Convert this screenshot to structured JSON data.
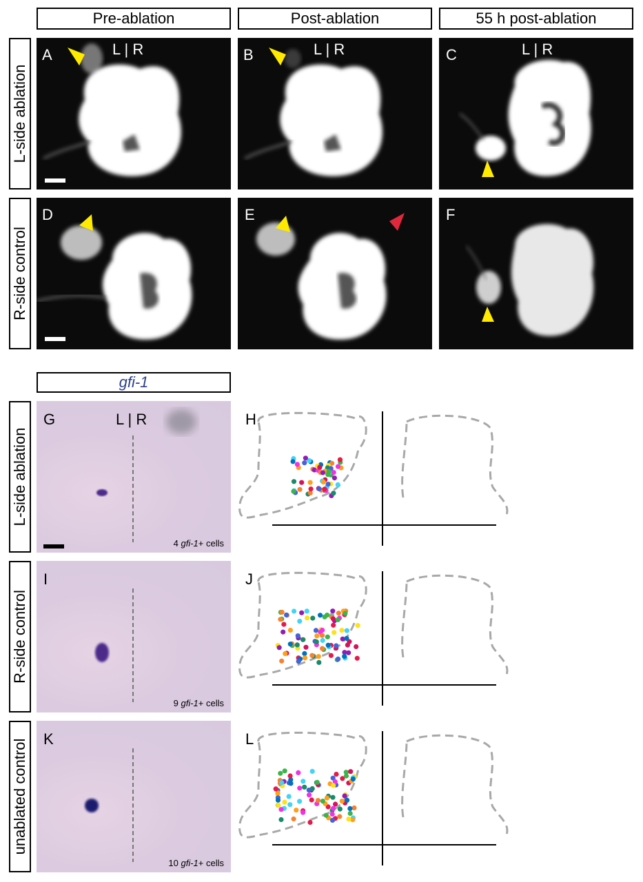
{
  "headers": {
    "col1": "Pre-ablation",
    "col2": "Post-ablation",
    "col3": "55 h post-ablation",
    "gene": "gfi-1"
  },
  "row_labels": {
    "row1": "L-side ablation",
    "row2": "R-side control",
    "row3": "L-side ablation",
    "row4": "R-side control",
    "row5": "unablated control"
  },
  "panels": {
    "A": "A",
    "B": "B",
    "C": "C",
    "D": "D",
    "E": "E",
    "F": "F",
    "G": "G",
    "H": "H",
    "I": "I",
    "J": "J",
    "K": "K",
    "L": "L"
  },
  "lr_marker": "L | R",
  "cell_counts": {
    "G": {
      "count": "4",
      "gene": "gfi-1",
      "suffix": "+ cells"
    },
    "I": {
      "count": "9",
      "gene": "gfi-1",
      "suffix": "+ cells"
    },
    "K": {
      "count": "10",
      "gene": "gfi-1",
      "suffix": "+ cells"
    }
  },
  "colors": {
    "arrow_yellow": "#ffea00",
    "arrow_red": "#e0283c",
    "gene_label": "#2b3f8c",
    "outline_gray": "#a8a8a8"
  }
}
